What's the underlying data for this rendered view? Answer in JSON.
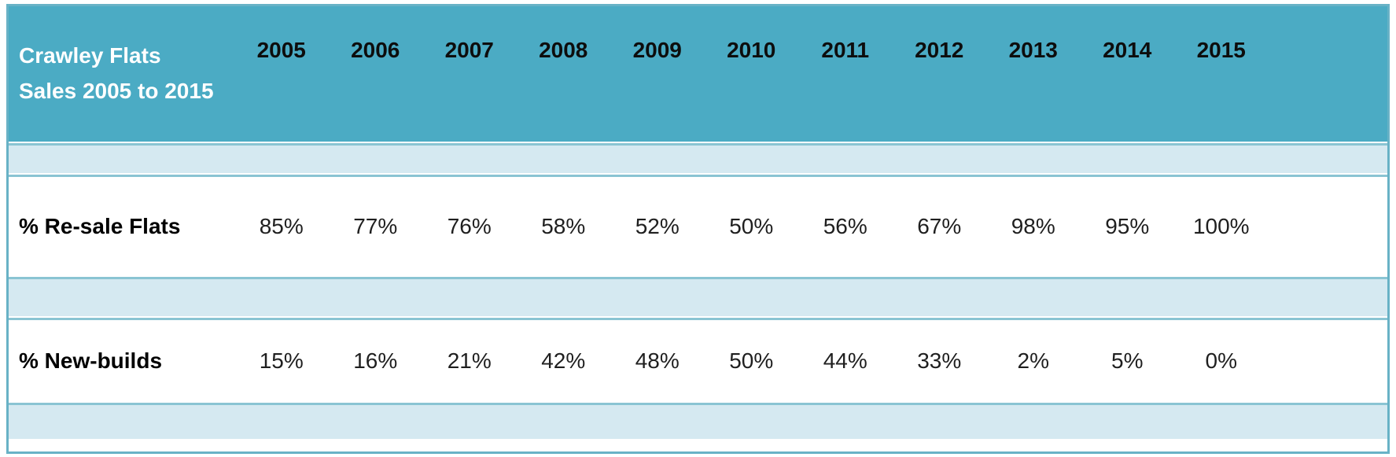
{
  "table": {
    "title_line1": "Crawley Flats",
    "title_line2": "Sales 2005 to 2015",
    "years": [
      "2005",
      "2006",
      "2007",
      "2008",
      "2009",
      "2010",
      "2011",
      "2012",
      "2013",
      "2014",
      "2015"
    ],
    "rows": [
      {
        "label": "% Re-sale Flats",
        "values": [
          "85%",
          "77%",
          "76%",
          "58%",
          "52%",
          "50%",
          "56%",
          "67%",
          "98%",
          "95%",
          "100%"
        ]
      },
      {
        "label": "% New-builds",
        "values": [
          "15%",
          "16%",
          "21%",
          "42%",
          "48%",
          "50%",
          "44%",
          "33%",
          "2%",
          "5%",
          "0%"
        ]
      }
    ],
    "colors": {
      "header_bg": "#4babc4",
      "band_bg": "#d5e9f1",
      "border_outer": "#68b2c6",
      "border_line": "#8ac4d3",
      "title_text": "#ffffff",
      "header_text": "#0d0d0d",
      "value_text": "#1f1f1f"
    }
  },
  "chart_data": {
    "type": "table",
    "title": "Crawley Flats Sales 2005 to 2015",
    "categories": [
      "2005",
      "2006",
      "2007",
      "2008",
      "2009",
      "2010",
      "2011",
      "2012",
      "2013",
      "2014",
      "2015"
    ],
    "series": [
      {
        "name": "% Re-sale Flats",
        "unit": "%",
        "values": [
          85,
          77,
          76,
          58,
          52,
          50,
          56,
          67,
          98,
          95,
          100
        ]
      },
      {
        "name": "% New-builds",
        "unit": "%",
        "values": [
          15,
          16,
          21,
          42,
          48,
          50,
          44,
          33,
          2,
          5,
          0
        ]
      }
    ],
    "layout": {
      "header_fill": "#4babc4",
      "banded_rows": true,
      "band_fill": "#d5e9f1",
      "grid": "horizontal-only"
    }
  }
}
